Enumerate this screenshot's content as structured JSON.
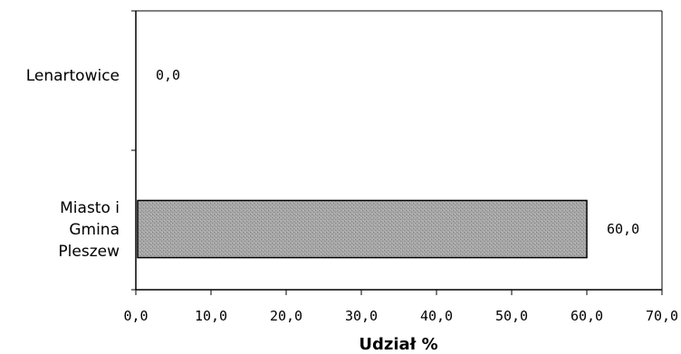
{
  "chart_data": {
    "type": "bar",
    "orientation": "horizontal",
    "categories": [
      [
        "Lenartowice"
      ],
      [
        "Miasto i",
        "Gmina",
        "Pleszew"
      ]
    ],
    "values": [
      0.0,
      60.0
    ],
    "data_labels": [
      "0,0",
      "60,0"
    ],
    "xlabel": "Udział %",
    "ylabel": "",
    "xlim": [
      0,
      70
    ],
    "x_ticks": [
      0,
      10,
      20,
      30,
      40,
      50,
      60,
      70
    ],
    "x_tick_labels": [
      "0,0",
      "10,0",
      "20,0",
      "30,0",
      "40,0",
      "50,0",
      "60,0",
      "70,0"
    ],
    "grid": false,
    "legend": "none",
    "colors": {
      "bar_fill": "#a9a9a9",
      "bar_stroke": "#000000",
      "frame": "#000000"
    }
  }
}
